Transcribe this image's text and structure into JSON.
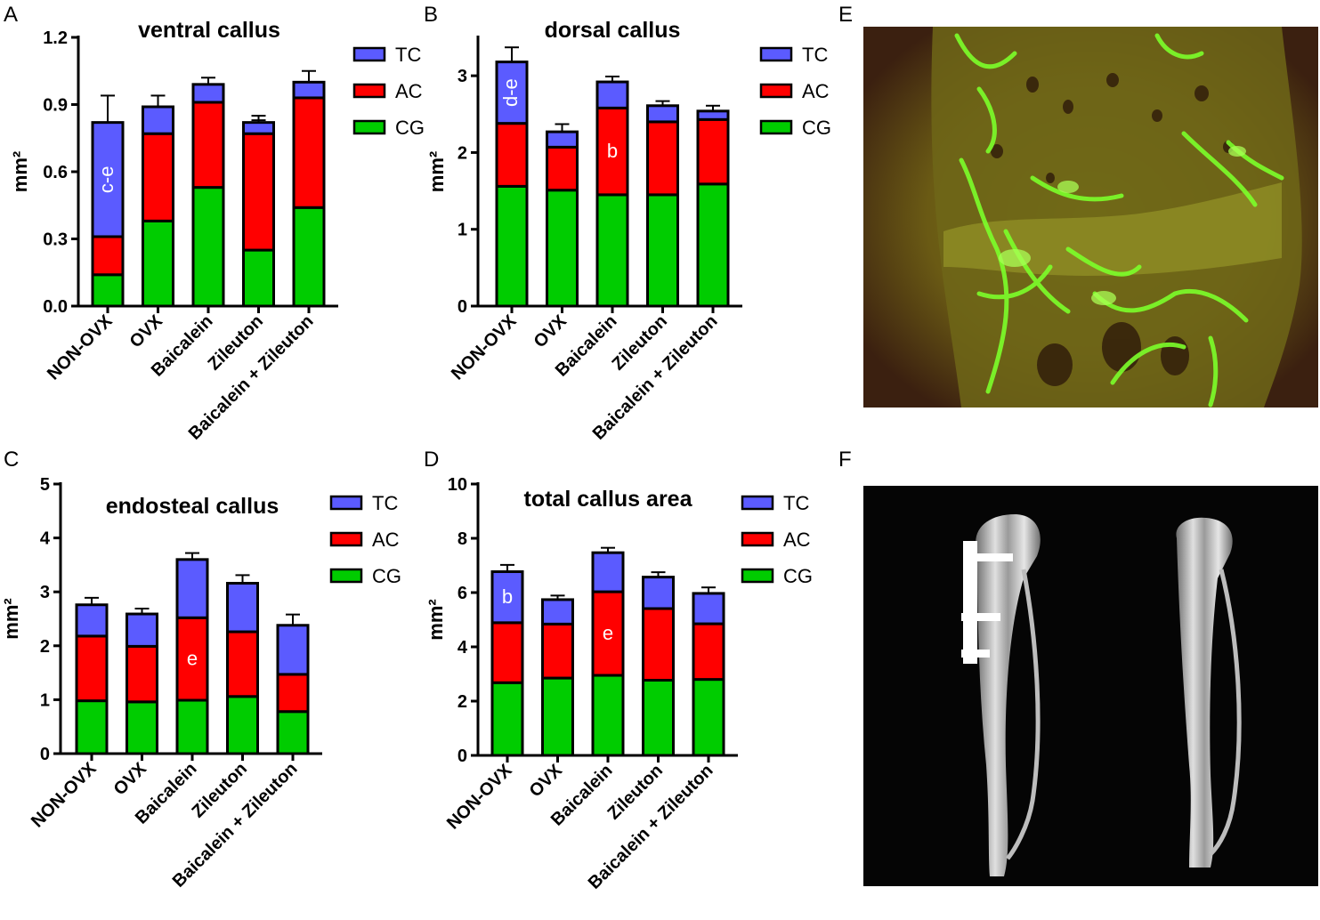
{
  "panel_labels": [
    "A",
    "B",
    "C",
    "D",
    "E",
    "F"
  ],
  "colors": {
    "TC": "#5b5bff",
    "AC": "#ff0000",
    "CG": "#00cc00",
    "axis": "#000000"
  },
  "chart_data": [
    {
      "id": "A",
      "type": "bar",
      "stacked": true,
      "title": "ventral callus",
      "ylabel": "mm²",
      "ylim": [
        0,
        1.2
      ],
      "yticks": [
        "0.0",
        "0.3",
        "0.6",
        "0.9",
        "1.2"
      ],
      "categories": [
        "NON-OVX",
        "OVX",
        "Baicalein",
        "Zileuton",
        "Baicalein + Zileuton"
      ],
      "legend": [
        "TC",
        "AC",
        "CG"
      ],
      "series": [
        {
          "name": "CG",
          "values": [
            0.14,
            0.38,
            0.53,
            0.25,
            0.44
          ],
          "errors": [
            0.06,
            0.08,
            0.13,
            0.07,
            0.14
          ]
        },
        {
          "name": "AC",
          "values": [
            0.17,
            0.39,
            0.38,
            0.52,
            0.49
          ],
          "errors": [
            0.11,
            0.09,
            0.07,
            0.06,
            0.07
          ]
        },
        {
          "name": "TC",
          "values": [
            0.51,
            0.12,
            0.08,
            0.05,
            0.07
          ],
          "errors": [
            0.12,
            0.05,
            0.03,
            0.03,
            0.05
          ]
        }
      ],
      "annotations": [
        {
          "category": "NON-OVX",
          "series": "TC",
          "text": "c-e"
        }
      ]
    },
    {
      "id": "B",
      "type": "bar",
      "stacked": true,
      "title": "dorsal callus",
      "ylabel": "mm²",
      "ylim": [
        0,
        3.5
      ],
      "yticks": [
        "0",
        "1",
        "2",
        "3"
      ],
      "categories": [
        "NON-OVX",
        "OVX",
        "Baicalein",
        "Zileuton",
        "Baicalein + Zileuton"
      ],
      "legend": [
        "TC",
        "AC",
        "CG"
      ],
      "series": [
        {
          "name": "CG",
          "values": [
            1.56,
            1.51,
            1.45,
            1.45,
            1.59
          ],
          "errors": [
            0.22,
            0.19,
            0.22,
            0.18,
            0.22
          ]
        },
        {
          "name": "AC",
          "values": [
            0.82,
            0.56,
            1.13,
            0.95,
            0.84
          ],
          "errors": [
            0.1,
            0.06,
            0.18,
            0.1,
            0.07
          ]
        },
        {
          "name": "TC",
          "values": [
            0.8,
            0.2,
            0.34,
            0.21,
            0.11
          ],
          "errors": [
            0.19,
            0.1,
            0.07,
            0.06,
            0.07
          ]
        }
      ],
      "annotations": [
        {
          "category": "NON-OVX",
          "series": "TC",
          "text": "d-e"
        },
        {
          "category": "Baicalein",
          "series": "AC",
          "text": "b"
        }
      ]
    },
    {
      "id": "C",
      "type": "bar",
      "stacked": true,
      "title": "endosteal callus",
      "ylabel": "mm²",
      "ylim": [
        0,
        5
      ],
      "yticks": [
        "0",
        "1",
        "2",
        "3",
        "4",
        "5"
      ],
      "categories": [
        "NON-OVX",
        "OVX",
        "Baicalein",
        "Zileuton",
        "Baicalein + Zileuton"
      ],
      "legend": [
        "TC",
        "AC",
        "CG"
      ],
      "series": [
        {
          "name": "CG",
          "values": [
            0.98,
            0.96,
            0.99,
            1.06,
            0.78
          ],
          "errors": [
            0.26,
            0.22,
            0.26,
            0.24,
            0.2
          ]
        },
        {
          "name": "AC",
          "values": [
            1.2,
            1.03,
            1.53,
            1.2,
            0.69
          ],
          "errors": [
            0.32,
            0.3,
            0.25,
            0.18,
            0.15
          ]
        },
        {
          "name": "TC",
          "values": [
            0.58,
            0.6,
            1.08,
            0.9,
            0.91
          ],
          "errors": [
            0.13,
            0.1,
            0.12,
            0.15,
            0.2
          ]
        }
      ],
      "annotations": [
        {
          "category": "Baicalein",
          "series": "AC",
          "text": "e"
        }
      ]
    },
    {
      "id": "D",
      "type": "bar",
      "stacked": true,
      "title": "total callus area",
      "ylabel": "mm²",
      "ylim": [
        0,
        10
      ],
      "yticks": [
        "0",
        "2",
        "4",
        "6",
        "8",
        "10"
      ],
      "categories": [
        "NON-OVX",
        "OVX",
        "Baicalein",
        "Zileuton",
        "Baicalein + Zileuton"
      ],
      "legend": [
        "TC",
        "AC",
        "CG"
      ],
      "series": [
        {
          "name": "CG",
          "values": [
            2.68,
            2.85,
            2.95,
            2.77,
            2.8
          ],
          "errors": [
            0.3,
            0.35,
            0.36,
            0.25,
            0.35
          ]
        },
        {
          "name": "AC",
          "values": [
            2.21,
            1.99,
            3.08,
            2.64,
            2.05
          ],
          "errors": [
            0.35,
            0.35,
            0.35,
            0.2,
            0.2
          ]
        },
        {
          "name": "TC",
          "values": [
            1.88,
            0.9,
            1.44,
            1.16,
            1.12
          ],
          "errors": [
            0.25,
            0.15,
            0.18,
            0.18,
            0.22
          ]
        }
      ],
      "annotations": [
        {
          "category": "NON-OVX",
          "series": "TC",
          "text": "b"
        },
        {
          "category": "Baicalein",
          "series": "AC",
          "text": "e"
        }
      ]
    }
  ],
  "images": [
    {
      "id": "E",
      "description_icon": "fluorescence-micrograph-icon",
      "colors": {
        "bg": "#3b2010",
        "tissue": "#8a8a1e",
        "stain": "#7cff2a"
      }
    },
    {
      "id": "F",
      "description_icon": "xray-radiograph-icon",
      "colors": {
        "bg": "#050505",
        "bone": "#d8d8d8",
        "implant": "#ffffff"
      }
    }
  ]
}
